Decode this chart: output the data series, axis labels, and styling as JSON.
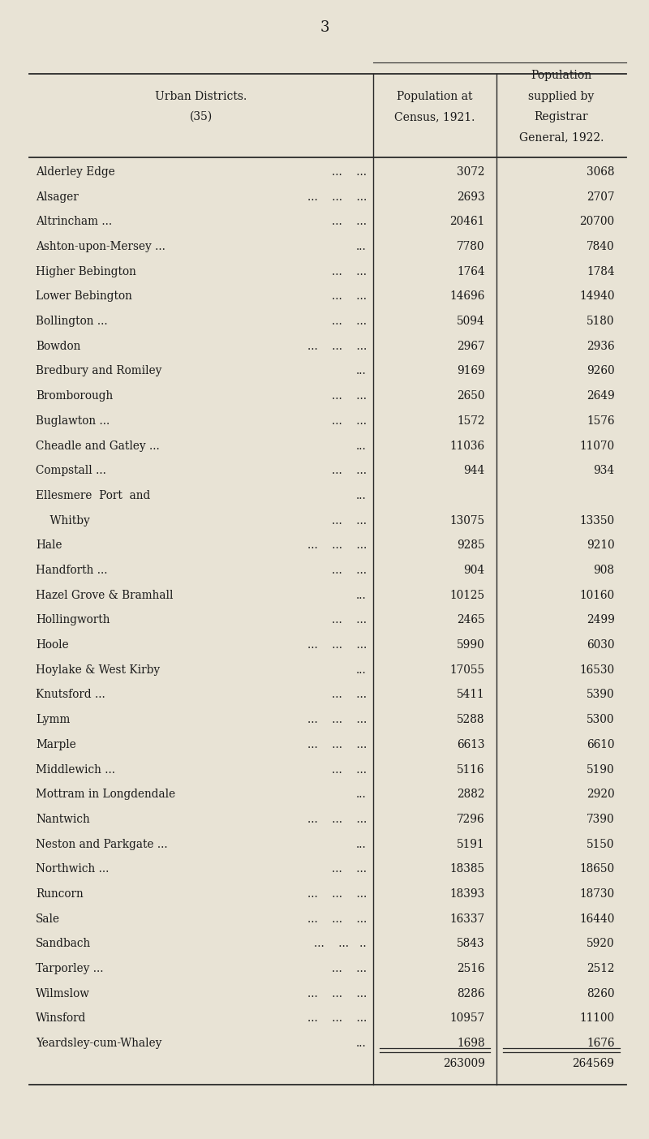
{
  "page_number": "3",
  "bg_color": "#e8e3d5",
  "header_col1": "Urban Districts.\n(35)",
  "header_col2": "Population at\nCensus, 1921.",
  "header_col3": "Population\nsupplied by\nRegistrar\nGeneral, 1922.",
  "display_rows": [
    {
      "name": "Alderley Edge",
      "dots": "...    ...",
      "v1": "3072",
      "v2": "3068"
    },
    {
      "name": "Alsager",
      "dots": "...    ...    ...",
      "v1": "2693",
      "v2": "2707"
    },
    {
      "name": "Altrincham ...",
      "dots": "...    ...",
      "v1": "20461",
      "v2": "20700"
    },
    {
      "name": "Ashton-upon-Mersey ...",
      "dots": "...",
      "v1": "7780",
      "v2": "7840"
    },
    {
      "name": "Higher Bebington",
      "dots": "...    ...",
      "v1": "1764",
      "v2": "1784"
    },
    {
      "name": "Lower Bebington",
      "dots": "...    ...",
      "v1": "14696",
      "v2": "14940"
    },
    {
      "name": "Bollington ...",
      "dots": "...    ...",
      "v1": "5094",
      "v2": "5180"
    },
    {
      "name": "Bowdon",
      "dots": "...    ...    ...",
      "v1": "2967",
      "v2": "2936"
    },
    {
      "name": "Bredbury and Romiley",
      "dots": "...",
      "v1": "9169",
      "v2": "9260"
    },
    {
      "name": "Bromborough",
      "dots": "...    ...",
      "v1": "2650",
      "v2": "2649"
    },
    {
      "name": "Buglawton ...",
      "dots": "...    ...",
      "v1": "1572",
      "v2": "1576"
    },
    {
      "name": "Cheadle and Gatley ...",
      "dots": "...",
      "v1": "11036",
      "v2": "11070"
    },
    {
      "name": "Compstall ...",
      "dots": "...    ...",
      "v1": "944",
      "v2": "934"
    },
    {
      "name": "Ellesmere  Port  and",
      "dots": "...",
      "v1": "",
      "v2": ""
    },
    {
      "name": "    Whitby",
      "dots": "...    ...",
      "v1": "13075",
      "v2": "13350"
    },
    {
      "name": "Hale",
      "dots": "...    ...    ...",
      "v1": "9285",
      "v2": "9210"
    },
    {
      "name": "Handforth ...",
      "dots": "...    ...",
      "v1": "904",
      "v2": "908"
    },
    {
      "name": "Hazel Grove & Bramhall",
      "dots": "...",
      "v1": "10125",
      "v2": "10160"
    },
    {
      "name": "Hollingworth",
      "dots": "...    ...",
      "v1": "2465",
      "v2": "2499"
    },
    {
      "name": "Hoole",
      "dots": "...    ...    ...",
      "v1": "5990",
      "v2": "6030"
    },
    {
      "name": "Hoylake & West Kirby",
      "dots": "...",
      "v1": "17055",
      "v2": "16530"
    },
    {
      "name": "Knutsford ...",
      "dots": "...    ...",
      "v1": "5411",
      "v2": "5390"
    },
    {
      "name": "Lymm",
      "dots": "...    ...    ...",
      "v1": "5288",
      "v2": "5300"
    },
    {
      "name": "Marple",
      "dots": "...    ...    ...",
      "v1": "6613",
      "v2": "6610"
    },
    {
      "name": "Middlewich ...",
      "dots": "...    ...",
      "v1": "5116",
      "v2": "5190"
    },
    {
      "name": "Mottram in Longdendale",
      "dots": "...",
      "v1": "2882",
      "v2": "2920"
    },
    {
      "name": "Nantwich",
      "dots": "...    ...    ...",
      "v1": "7296",
      "v2": "7390"
    },
    {
      "name": "Neston and Parkgate ...",
      "dots": "...",
      "v1": "5191",
      "v2": "5150"
    },
    {
      "name": "Northwich ...",
      "dots": "...    ...",
      "v1": "18385",
      "v2": "18650"
    },
    {
      "name": "Runcorn",
      "dots": "...    ...    ...",
      "v1": "18393",
      "v2": "18730"
    },
    {
      "name": "Sale",
      "dots": "...    ...    ...",
      "v1": "16337",
      "v2": "16440"
    },
    {
      "name": "Sandbach",
      "dots": "...    ...   ..",
      "v1": "5843",
      "v2": "5920"
    },
    {
      "name": "Tarporley ...",
      "dots": "...    ...",
      "v1": "2516",
      "v2": "2512"
    },
    {
      "name": "Wilmslow",
      "dots": "...    ...    ...",
      "v1": "8286",
      "v2": "8260"
    },
    {
      "name": "Winsford",
      "dots": "...    ...    ...",
      "v1": "10957",
      "v2": "11100"
    },
    {
      "name": "Yeardsley-cum-Whaley",
      "dots": "...",
      "v1": "1698",
      "v2": "1676"
    }
  ],
  "total_v1": "263009",
  "total_v2": "264569",
  "fig_width": 8.0,
  "fig_height": 14.04,
  "dpi": 100
}
